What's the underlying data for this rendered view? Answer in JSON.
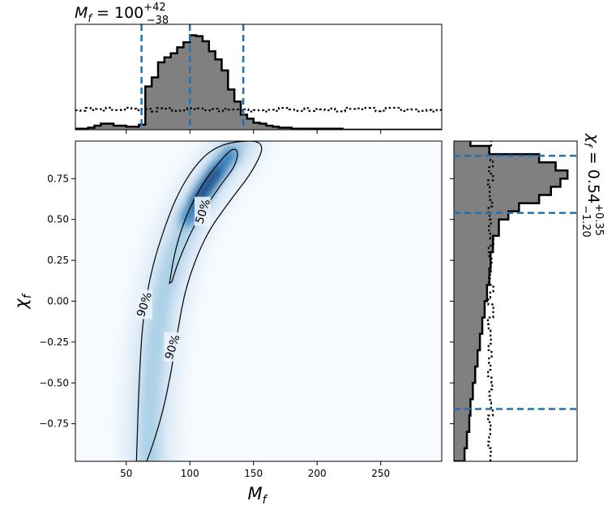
{
  "chart_data": {
    "type": "corner",
    "panels": {
      "joint": {
        "type": "heatmap",
        "xlabel": "M_f",
        "ylabel": "χ_f",
        "xlim": [
          10,
          298
        ],
        "ylim": [
          -0.98,
          0.98
        ],
        "xticks": [
          50,
          100,
          150,
          200,
          250
        ],
        "xtick_labels": [
          "50",
          "100",
          "150",
          "200",
          "250"
        ],
        "yticks": [
          -0.75,
          -0.5,
          -0.25,
          0.0,
          0.25,
          0.5,
          0.75
        ],
        "ytick_labels": [
          "−0.75",
          "−0.50",
          "−0.25",
          "0.00",
          "0.25",
          "0.50",
          "0.75"
        ],
        "colormap": "Blues",
        "density_ridge": [
          {
            "y": -0.98,
            "x": 68
          },
          {
            "y": -0.75,
            "x": 68
          },
          {
            "y": -0.5,
            "x": 70
          },
          {
            "y": -0.25,
            "x": 73
          },
          {
            "y": 0.0,
            "x": 78
          },
          {
            "y": 0.25,
            "x": 86
          },
          {
            "y": 0.5,
            "x": 98
          },
          {
            "y": 0.6,
            "x": 105
          },
          {
            "y": 0.7,
            "x": 113
          },
          {
            "y": 0.8,
            "x": 122
          },
          {
            "y": 0.9,
            "x": 132
          },
          {
            "y": 0.98,
            "x": 140
          }
        ],
        "contours": [
          {
            "level": "90%",
            "points": [
              [
                58,
                -0.98
              ],
              [
                60,
                -0.5
              ],
              [
                63,
                -0.1
              ],
              [
                70,
                0.2
              ],
              [
                80,
                0.45
              ],
              [
                90,
                0.65
              ],
              [
                103,
                0.82
              ],
              [
                117,
                0.93
              ],
              [
                135,
                0.98
              ],
              [
                160,
                0.98
              ],
              [
                150,
                0.8
              ],
              [
                130,
                0.6
              ],
              [
                112,
                0.4
              ],
              [
                97,
                0.1
              ],
              [
                90,
                -0.2
              ],
              [
                85,
                -0.45
              ],
              [
                78,
                -0.7
              ],
              [
                70,
                -0.9
              ],
              [
                66,
                -0.98
              ]
            ]
          },
          {
            "level": "50%",
            "points": [
              [
                84,
                0.11
              ],
              [
                88,
                0.3
              ],
              [
                95,
                0.48
              ],
              [
                103,
                0.62
              ],
              [
                112,
                0.74
              ],
              [
                122,
                0.84
              ],
              [
                131,
                0.92
              ],
              [
                136,
                0.935
              ],
              [
                138,
                0.9
              ],
              [
                135,
                0.82
              ],
              [
                126,
                0.73
              ],
              [
                118,
                0.64
              ],
              [
                110,
                0.55
              ],
              [
                102,
                0.44
              ],
              [
                95,
                0.32
              ],
              [
                89,
                0.2
              ],
              [
                86,
                0.12
              ]
            ]
          }
        ],
        "contour_labels": [
          {
            "text": "50%",
            "x": 110,
            "y": 0.55
          },
          {
            "text": "90%",
            "x": 64,
            "y": -0.02
          },
          {
            "text": "90%",
            "x": 86,
            "y": -0.28
          }
        ]
      },
      "top": {
        "type": "histogram",
        "title": "M_f = 100 (+42, −38)",
        "title_main": "M",
        "title_sub": "f",
        "title_eq": " = 100",
        "title_sup": "+42",
        "title_inf": "−38",
        "bin_edges": [
          10,
          15,
          20,
          25,
          30,
          35,
          40,
          45,
          50,
          55,
          60,
          65,
          70,
          75,
          80,
          85,
          90,
          95,
          100,
          105,
          110,
          115,
          120,
          125,
          130,
          135,
          140,
          145,
          150,
          155,
          160,
          165,
          170,
          180,
          200,
          220,
          250,
          280,
          298
        ],
        "posterior": [
          0.01,
          0.01,
          0.02,
          0.04,
          0.06,
          0.06,
          0.04,
          0.04,
          0.03,
          0.03,
          0.05,
          0.43,
          0.52,
          0.67,
          0.72,
          0.76,
          0.82,
          0.87,
          0.94,
          0.93,
          0.88,
          0.78,
          0.7,
          0.59,
          0.4,
          0.28,
          0.15,
          0.11,
          0.07,
          0.06,
          0.04,
          0.03,
          0.02,
          0.01,
          0.01,
          0.0,
          0.0,
          0.0
        ],
        "prior_level": 0.2,
        "credible_lines": [
          62,
          100,
          142
        ],
        "ylim": [
          0,
          1.0
        ]
      },
      "right": {
        "type": "histogram",
        "orientation": "horizontal",
        "title_main": "χ",
        "title_sub": "f",
        "title_eq": " = 0.54",
        "title_sup": "+0.35",
        "title_inf": "−1.20",
        "bin_edges": [
          -0.98,
          -0.9,
          -0.8,
          -0.7,
          -0.6,
          -0.5,
          -0.4,
          -0.3,
          -0.2,
          -0.1,
          0.0,
          0.1,
          0.2,
          0.3,
          0.4,
          0.5,
          0.55,
          0.6,
          0.65,
          0.7,
          0.75,
          0.8,
          0.85,
          0.9,
          0.95,
          0.98
        ],
        "posterior": [
          0.09,
          0.11,
          0.13,
          0.14,
          0.16,
          0.18,
          0.2,
          0.22,
          0.24,
          0.26,
          0.28,
          0.3,
          0.31,
          0.33,
          0.38,
          0.46,
          0.55,
          0.72,
          0.82,
          0.9,
          0.96,
          0.86,
          0.72,
          0.3,
          0.14
        ],
        "prior_level": 0.31,
        "credible_lines": [
          -0.66,
          0.54,
          0.89
        ],
        "xlim": [
          0,
          1.0
        ]
      }
    }
  }
}
